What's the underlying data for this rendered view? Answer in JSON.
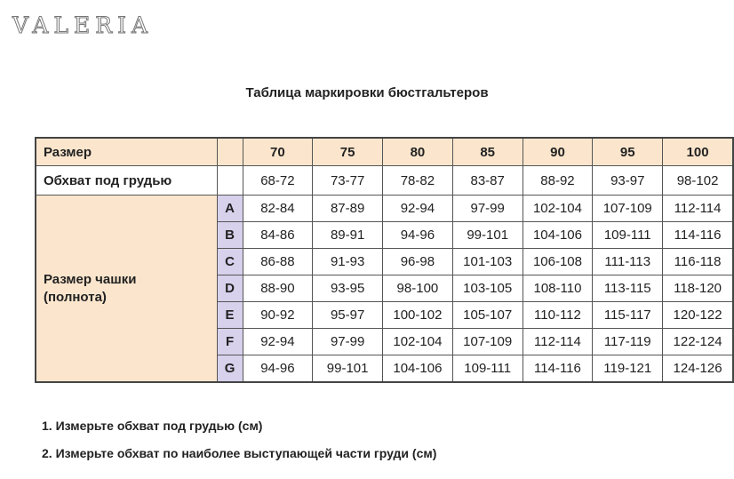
{
  "brand": "VALERIA",
  "title": "Таблица маркировки бюстгальтеров",
  "table": {
    "size_label": "Размер",
    "sizes": [
      "70",
      "75",
      "80",
      "85",
      "90",
      "95",
      "100"
    ],
    "underbust_label": "Обхват под грудью",
    "underbust": [
      "68-72",
      "73-77",
      "78-82",
      "83-87",
      "88-92",
      "93-97",
      "98-102"
    ],
    "cup_label": "Размер чашки (полнота)",
    "cups": [
      {
        "letter": "A",
        "values": [
          "82-84",
          "87-89",
          "92-94",
          "97-99",
          "102-104",
          "107-109",
          "112-114"
        ]
      },
      {
        "letter": "B",
        "values": [
          "84-86",
          "89-91",
          "94-96",
          "99-101",
          "104-106",
          "109-111",
          "114-116"
        ]
      },
      {
        "letter": "C",
        "values": [
          "86-88",
          "91-93",
          "96-98",
          "101-103",
          "106-108",
          "111-113",
          "116-118"
        ]
      },
      {
        "letter": "D",
        "values": [
          "88-90",
          "93-95",
          "98-100",
          "103-105",
          "108-110",
          "113-115",
          "118-120"
        ]
      },
      {
        "letter": "E",
        "values": [
          "90-92",
          "95-97",
          "100-102",
          "105-107",
          "110-112",
          "115-117",
          "120-122"
        ]
      },
      {
        "letter": "F",
        "values": [
          "92-94",
          "97-99",
          "102-104",
          "107-109",
          "112-114",
          "117-119",
          "122-124"
        ]
      },
      {
        "letter": "G",
        "values": [
          "94-96",
          "99-101",
          "104-106",
          "109-111",
          "114-116",
          "119-121",
          "124-126"
        ]
      }
    ]
  },
  "notes": [
    "1. Измерьте обхват под грудью (см)",
    "2. Измерьте обхват по наиболее выступающей части груди (см)"
  ]
}
